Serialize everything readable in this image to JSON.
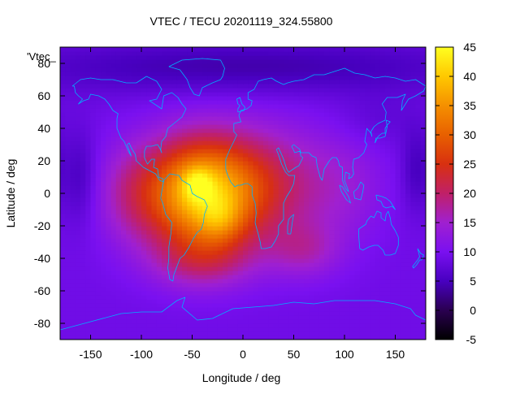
{
  "chart_data": {
    "type": "heatmap",
    "title": "VTEC / TECU 20201119_324.55800",
    "xlabel": "Longitude / deg",
    "ylabel": "Latitude / deg",
    "key_label": "'Vtec_",
    "xlim": [
      -180,
      180
    ],
    "ylim": [
      -90,
      90
    ],
    "x_ticks": [
      -150,
      -100,
      -50,
      0,
      50,
      100,
      150
    ],
    "y_ticks": [
      -80,
      -60,
      -40,
      -20,
      0,
      20,
      40,
      60,
      80
    ],
    "colorbar": {
      "range": [
        -5,
        45
      ],
      "ticks": [
        -5,
        0,
        5,
        10,
        15,
        20,
        25,
        30,
        35,
        40,
        45
      ]
    },
    "grid": false,
    "field": {
      "background": 9,
      "components": [
        {
          "lon": -42,
          "lat": 0,
          "amp": 30,
          "sx": 38,
          "sy": 24
        },
        {
          "lon": -45,
          "lat": 6,
          "amp": 8,
          "sx": 10,
          "sy": 7
        },
        {
          "lon": -22,
          "lat": -16,
          "amp": 6,
          "sx": 15,
          "sy": 10
        },
        {
          "lon": 25,
          "lat": 5,
          "amp": 10,
          "sx": 40,
          "sy": 25
        },
        {
          "lon": -40,
          "lat": -42,
          "amp": 7,
          "sx": 35,
          "sy": 12
        },
        {
          "lon": 60,
          "lat": -35,
          "amp": 6,
          "sx": 25,
          "sy": 12
        },
        {
          "lon": -110,
          "lat": 0,
          "amp": 6,
          "sx": 25,
          "sy": 22
        },
        {
          "lon": 100,
          "lat": 5,
          "amp": 4,
          "sx": 30,
          "sy": 25
        },
        {
          "lon": 0,
          "lat": 78,
          "amp": -5,
          "sx": 180,
          "sy": 12
        },
        {
          "lon": -160,
          "lat": 10,
          "amp": -4,
          "sx": 12,
          "sy": 20
        },
        {
          "lon": 170,
          "lat": 15,
          "amp": -4,
          "sx": 10,
          "sy": 18
        },
        {
          "lon": 130,
          "lat": 45,
          "amp": -2,
          "sx": 30,
          "sy": 12
        }
      ]
    }
  }
}
